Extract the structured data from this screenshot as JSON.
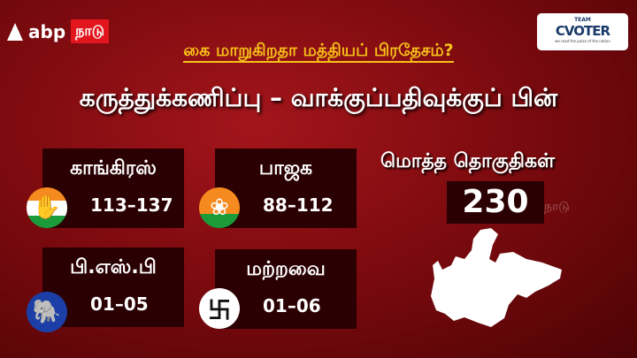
{
  "brand": {
    "name": "abp",
    "tag": "நாடு"
  },
  "partner": {
    "top": "TEAM",
    "name": "CVOTER",
    "slogan": "we read the pulse of the nation"
  },
  "subtitle": "கை மாறுகிறதா மத்தியப் பிரதேசம்?",
  "title": "கருத்துக்கணிப்பு – வாக்குப்பதிவுக்குப் பின்",
  "parties": [
    {
      "name": "காங்கிரஸ்",
      "range": "113–137",
      "icon": "hand-icon"
    },
    {
      "name": "பாஜக",
      "range": "88–112",
      "icon": "lotus-icon"
    },
    {
      "name": "பி.எஸ்.பி",
      "range": "01–05",
      "icon": "elephant-icon"
    },
    {
      "name": "மற்றவை",
      "range": "01–06",
      "icon": "swastika-icon"
    }
  ],
  "total": {
    "label": "மொத்த தொகுதிகள்",
    "value": "230"
  },
  "watermark": "நாடு",
  "colors": {
    "background": "#8a0c10",
    "box": "#2a0002",
    "accent": "#f7c21a",
    "brand_red": "#e2161c"
  }
}
